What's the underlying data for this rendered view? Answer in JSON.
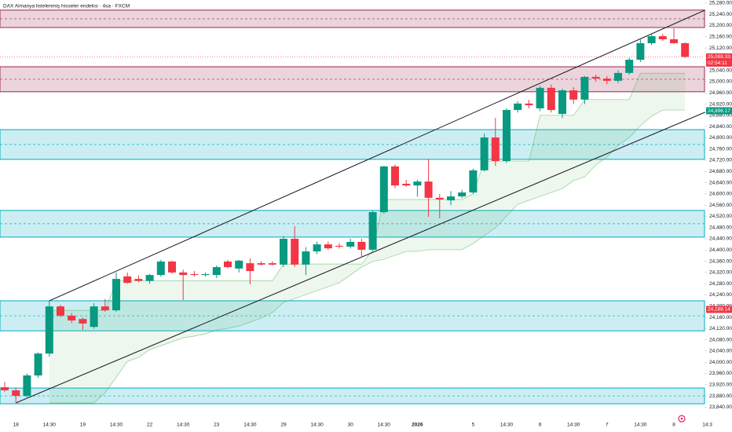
{
  "chart_data": {
    "type": "candlestick",
    "title": "DAX Almanya listelenmiş hisseler endeksi · 4sa · FXCM",
    "categories": [
      null,
      "18",
      null,
      null,
      "14:30",
      null,
      null,
      "19",
      null,
      null,
      "14:30",
      null,
      null,
      "22",
      null,
      null,
      "14:30",
      null,
      null,
      "23",
      null,
      null,
      "14:30",
      null,
      null,
      "29",
      null,
      null,
      "14:30",
      null,
      null,
      "30",
      null,
      null,
      "14:30",
      null,
      null,
      "2026",
      null,
      null,
      null,
      null,
      "5",
      null,
      null,
      "14:30",
      null,
      null,
      "6",
      null,
      null,
      "14:30",
      null,
      null,
      "7",
      null,
      null,
      "14:30",
      null,
      null,
      "8",
      null,
      null,
      "14:3"
    ],
    "open": [
      23911,
      23900,
      23880,
      23953,
      24031,
      24199,
      24166,
      24154,
      24126,
      24199,
      24185,
      24306,
      24297,
      24290,
      24311,
      24359,
      24320,
      24314,
      24311,
      24311,
      24359,
      24334,
      24353,
      24353,
      24353,
      24348,
      24440,
      24348,
      24395,
      24420,
      24415,
      24412,
      24429,
      24401,
      24535,
      24698,
      24636,
      24630,
      24644,
      24586,
      24577,
      24591,
      24605,
      24684,
      24801,
      24717,
      24899,
      24922,
      24905,
      24978,
      24885,
      24969,
      24936,
      25017,
      25011,
      25003,
      25031,
      25078,
      25137,
      25162,
      25151,
      25137,
      null,
      null
    ],
    "high": [
      23930,
      23910,
      23960,
      24035,
      24219,
      24205,
      24175,
      24160,
      24210,
      24225,
      24320,
      24320,
      24310,
      24315,
      24365,
      24362,
      24330,
      24325,
      24320,
      24345,
      24365,
      24365,
      24370,
      24360,
      24360,
      24450,
      24485,
      24410,
      24430,
      24430,
      24425,
      24440,
      24440,
      24540,
      24700,
      24705,
      24650,
      24650,
      24725,
      24600,
      24610,
      24615,
      24690,
      24815,
      24871,
      24905,
      24930,
      24935,
      24985,
      24990,
      24975,
      24980,
      25020,
      25025,
      25020,
      25040,
      25085,
      25150,
      25170,
      25170,
      25190,
      25140,
      null,
      null
    ],
    "low": [
      23895,
      23855,
      23870,
      23945,
      24020,
      24160,
      24140,
      24115,
      24120,
      24180,
      24180,
      24280,
      24285,
      24280,
      24305,
      24315,
      24222,
      24305,
      24305,
      24300,
      24335,
      24320,
      24278,
      24345,
      24345,
      24340,
      24340,
      24311,
      24385,
      24400,
      24405,
      24405,
      24373,
      24395,
      24530,
      24620,
      24625,
      24590,
      24518,
      24513,
      24560,
      24585,
      24600,
      24680,
      24700,
      24710,
      24890,
      24905,
      24895,
      24890,
      24870,
      24920,
      24920,
      25000,
      24990,
      24995,
      25025,
      25070,
      25130,
      25145,
      25135,
      25085,
      null,
      null
    ],
    "close": [
      23900,
      23880,
      23953,
      24031,
      24199,
      24166,
      24149,
      24138,
      24199,
      24185,
      24297,
      24283,
      24290,
      24311,
      24359,
      24320,
      24311,
      24311,
      24314,
      24339,
      24339,
      24362,
      24325,
      24348,
      24348,
      24440,
      24348,
      24395,
      24420,
      24406,
      24412,
      24429,
      24401,
      24535,
      24698,
      24630,
      24630,
      24644,
      24586,
      24580,
      24591,
      24605,
      24684,
      24801,
      24717,
      24899,
      24922,
      24916,
      24978,
      24899,
      24969,
      24936,
      25017,
      25011,
      25003,
      25031,
      25078,
      25137,
      25162,
      25151,
      25137,
      25088.33,
      null,
      null
    ],
    "up_color": "#089981",
    "down_color": "#f23645",
    "cloud": {
      "color": "#4caf50",
      "upper": [
        null,
        null,
        null,
        null,
        24185,
        24185,
        24185,
        24185,
        24185,
        24185,
        24290,
        24290,
        24290,
        24290,
        24290,
        24290,
        24290,
        24290,
        24290,
        24290,
        24290,
        24290,
        24290,
        24290,
        24290,
        24350,
        24350,
        24350,
        24350,
        24350,
        24350,
        24350,
        24350,
        24400,
        24580,
        24580,
        24580,
        24580,
        24580,
        24580,
        24580,
        24580,
        24600,
        24717,
        24717,
        24717,
        24717,
        24717,
        24880,
        24880,
        24880,
        24880,
        24936,
        24936,
        24936,
        24936,
        24936,
        25030,
        25030,
        25030,
        25030,
        25030,
        null,
        null
      ],
      "lower": [
        null,
        null,
        null,
        null,
        23855,
        23855,
        23855,
        23855,
        23855,
        23891,
        23947,
        24003,
        24017,
        24045,
        24059,
        24073,
        24087,
        24093,
        24101,
        24115,
        24121,
        24129,
        24143,
        24157,
        24177,
        24213,
        24227,
        24241,
        24255,
        24269,
        24283,
        24311,
        24339,
        24359,
        24367,
        24381,
        24395,
        24395,
        24401,
        24401,
        24401,
        24401,
        24423,
        24451,
        24479,
        24521,
        24563,
        24577,
        24591,
        24605,
        24619,
        24647,
        24661,
        24703,
        24731,
        24773,
        24801,
        24843,
        24877,
        24899,
        24899,
        24899,
        null,
        null
      ]
    },
    "zones": [
      {
        "top": 25255,
        "bottom": 25193,
        "color": "#9c2752"
      },
      {
        "top": 25053,
        "bottom": 24964,
        "color": "#9c2752"
      },
      {
        "top": 24829,
        "bottom": 24723,
        "color": "#00acc1"
      },
      {
        "top": 24541,
        "bottom": 24446,
        "color": "#00acc1"
      },
      {
        "top": 24219,
        "bottom": 24112,
        "color": "#00acc1"
      },
      {
        "top": 23908,
        "bottom": 23852,
        "color": "#00acc1"
      }
    ],
    "trendlines": [
      {
        "x": [
          4,
          62.8
        ],
        "y": [
          24219,
          25255
        ],
        "color": "#131722"
      },
      {
        "x": [
          1,
          62.8
        ],
        "y": [
          23855,
          24891
        ],
        "color": "#131722"
      }
    ],
    "price_tags": [
      {
        "value": 25088.33,
        "label": "25,088.33",
        "color": "#f23645",
        "countdown": "02:54:11"
      },
      {
        "value": 24896.17,
        "label": "24,896.17",
        "color": "#089981"
      },
      {
        "value": 24188.14,
        "label": "24,188.14",
        "color": "#f23645"
      }
    ],
    "ylim": [
      23813,
      25291
    ],
    "yticks": [
      {
        "value": 23840,
        "label": "23,840.00"
      },
      {
        "value": 23880,
        "label": "23,880.00"
      },
      {
        "value": 23920,
        "label": "23,920.00"
      },
      {
        "value": 23960,
        "label": "23,960.00"
      },
      {
        "value": 24000,
        "label": "24,000.00"
      },
      {
        "value": 24040,
        "label": "24,040.00"
      },
      {
        "value": 24080,
        "label": "24,080.00"
      },
      {
        "value": 24120,
        "label": "24,120.00"
      },
      {
        "value": 24160,
        "label": "24,160.00"
      },
      {
        "value": 24200,
        "label": "24,200.00"
      },
      {
        "value": 24240,
        "label": "24,240.00"
      },
      {
        "value": 24280,
        "label": "24,280.00"
      },
      {
        "value": 24320,
        "label": "24,320.00"
      },
      {
        "value": 24360,
        "label": "24,360.00"
      },
      {
        "value": 24400,
        "label": "24,400.00"
      },
      {
        "value": 24440,
        "label": "24,440.00"
      },
      {
        "value": 24480,
        "label": "24,480.00"
      },
      {
        "value": 24520,
        "label": "24,520.00"
      },
      {
        "value": 24560,
        "label": "24,560.00"
      },
      {
        "value": 24600,
        "label": "24,600.00"
      },
      {
        "value": 24640,
        "label": "24,640.00"
      },
      {
        "value": 24680,
        "label": "24,680.00"
      },
      {
        "value": 24720,
        "label": "24,720.00"
      },
      {
        "value": 24760,
        "label": "24,760.00"
      },
      {
        "value": 24800,
        "label": "24,800.00"
      },
      {
        "value": 24840,
        "label": "24,840.00"
      },
      {
        "value": 24880,
        "label": "24,880.00"
      },
      {
        "value": 24920,
        "label": "24,920.00"
      },
      {
        "value": 24960,
        "label": "24,960.00"
      },
      {
        "value": 25000,
        "label": "25,000.00"
      },
      {
        "value": 25040,
        "label": "25,040.00"
      },
      {
        "value": 25080,
        "label": "25,080.00"
      },
      {
        "value": 25120,
        "label": "25,120.00"
      },
      {
        "value": 25160,
        "label": "25,160.00"
      },
      {
        "value": 25200,
        "label": "25,200.00"
      },
      {
        "value": 25240,
        "label": "25,240.00"
      },
      {
        "value": 25280,
        "label": "25,280.00"
      }
    ]
  }
}
